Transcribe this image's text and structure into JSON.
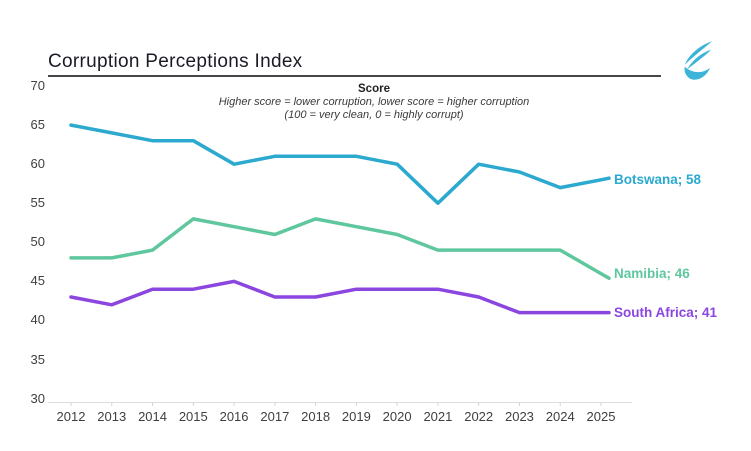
{
  "header": {
    "title": "Corruption Perceptions Index"
  },
  "annotation": {
    "title": "Score",
    "line1": "Higher score = lower corruption, lower score = higher corruption",
    "line2": "(100 = very clean, 0 = highly corrupt)"
  },
  "colors": {
    "botswana": "#2BA9CE",
    "namibia": "#5FC79D",
    "south_africa": "#8C46E0",
    "logo": "#3CB4D8",
    "axis_text": "#3f3f3f",
    "baseline": "#dedede",
    "title_rule": "#474747"
  },
  "chart_data": {
    "type": "line",
    "title": "Corruption Perceptions Index",
    "x": [
      "2012",
      "2013",
      "2014",
      "2015",
      "2016",
      "2017",
      "2018",
      "2019",
      "2020",
      "2021",
      "2022",
      "2023",
      "2024",
      "2025"
    ],
    "series": [
      {
        "name": "Botswana",
        "color": "#2BA9CE",
        "end_label": "Botswana; 58",
        "values": [
          65,
          64,
          63,
          63,
          60,
          61,
          61,
          61,
          60,
          55,
          60,
          59,
          57,
          58
        ]
      },
      {
        "name": "Namibia",
        "color": "#5FC79D",
        "end_label": "Namibia; 46",
        "values": [
          48,
          48,
          49,
          53,
          52,
          51,
          53,
          52,
          51,
          49,
          49,
          49,
          49,
          46
        ]
      },
      {
        "name": "South Africa",
        "color": "#8C46E0",
        "end_label": "South Africa; 41",
        "values": [
          43,
          42,
          44,
          44,
          45,
          43,
          43,
          44,
          44,
          44,
          43,
          41,
          41,
          41
        ]
      }
    ],
    "ylim": [
      30,
      70
    ],
    "ytick_step": 5,
    "grid": false,
    "legend_position": "end-of-line",
    "annotation": "Score — Higher score = lower corruption, lower score = higher corruption (100 = very clean, 0 = highly corrupt)"
  }
}
